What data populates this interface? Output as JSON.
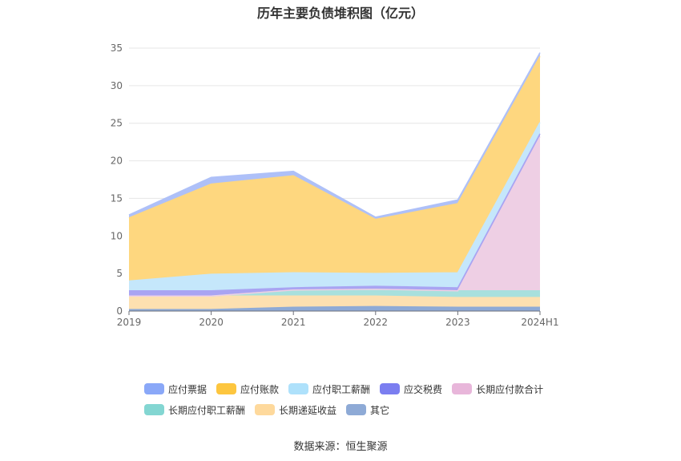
{
  "chart_data": {
    "type": "area",
    "title": "历年主要负债堆积图（亿元）",
    "source": "数据来源：恒生聚源",
    "categories": [
      "2019",
      "2020",
      "2021",
      "2022",
      "2023",
      "2024H1"
    ],
    "ylim": [
      0,
      35
    ],
    "yticks": [
      "0",
      "5",
      "10",
      "15",
      "20",
      "25",
      "30",
      "35"
    ],
    "grid": true,
    "legend_position": "bottom",
    "series": [
      {
        "name": "其它",
        "color": "#8eaad6",
        "values": [
          0.2,
          0.2,
          0.5,
          0.6,
          0.5,
          0.5
        ]
      },
      {
        "name": "长期递延收益",
        "color": "#fde0b0",
        "values": [
          1.8,
          1.8,
          1.5,
          1.4,
          1.3,
          1.3
        ]
      },
      {
        "name": "长期应付职工薪酬",
        "color": "#a8e0dd",
        "values": [
          0,
          0,
          0.8,
          0.9,
          0.9,
          0.9
        ]
      },
      {
        "name": "长期应付款合计",
        "color": "#eecfe4",
        "values": [
          0,
          0,
          0,
          0,
          0,
          20.5
        ]
      },
      {
        "name": "应交税费",
        "color": "#a9a4f2",
        "values": [
          0.7,
          0.7,
          0.3,
          0.4,
          0.4,
          0.4
        ]
      },
      {
        "name": "应付职工薪酬",
        "color": "#c5e7fb",
        "values": [
          1.3,
          2.2,
          2.0,
          1.7,
          2.0,
          1.5
        ]
      },
      {
        "name": "应付账款",
        "color": "#fed77f",
        "values": [
          8.4,
          12.0,
          12.9,
          7.2,
          9.2,
          8.8
        ]
      },
      {
        "name": "应付票据",
        "color": "#aec0f8",
        "values": [
          0.4,
          0.9,
          0.6,
          0.3,
          0.5,
          0.5
        ]
      }
    ],
    "legend": [
      {
        "name": "应付票据",
        "color": "#8aa8f8"
      },
      {
        "name": "应付账款",
        "color": "#fdc63f"
      },
      {
        "name": "应付职工薪酬",
        "color": "#aee1fb"
      },
      {
        "name": "应交税费",
        "color": "#7b7ef0"
      },
      {
        "name": "长期应付款合计",
        "color": "#e8b6da"
      },
      {
        "name": "长期应付职工薪酬",
        "color": "#83d6d2"
      },
      {
        "name": "长期递延收益",
        "color": "#fed99c"
      },
      {
        "name": "其它",
        "color": "#8eaad6"
      }
    ]
  }
}
